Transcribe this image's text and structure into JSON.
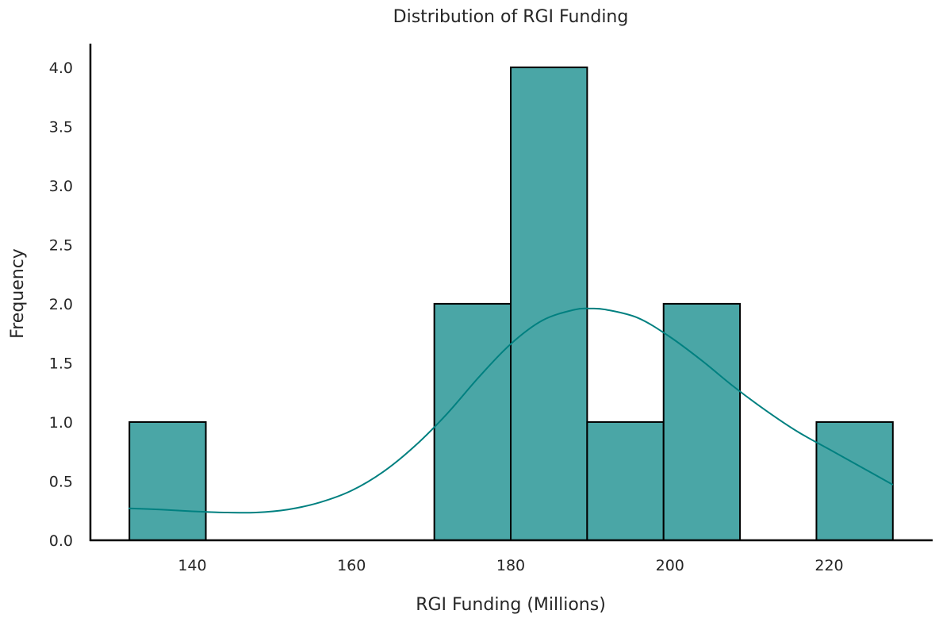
{
  "chart_data": {
    "type": "bar",
    "subtype": "histogram_with_kde",
    "title": "Distribution of RGI Funding",
    "xlabel": "RGI Funding (Millions)",
    "ylabel": "Frequency",
    "xlim": [
      127.2,
      233.0
    ],
    "ylim": [
      0,
      4.2
    ],
    "xticks": [
      140,
      160,
      180,
      200,
      220
    ],
    "yticks": [
      0.0,
      0.5,
      1.0,
      1.5,
      2.0,
      2.5,
      3.0,
      3.5,
      4.0
    ],
    "ytick_labels": [
      "0.0",
      "0.5",
      "1.0",
      "1.5",
      "2.0",
      "2.5",
      "3.0",
      "3.5",
      "4.0"
    ],
    "bins": [
      {
        "x0": 132.1,
        "x1": 141.7,
        "count": 1
      },
      {
        "x0": 141.7,
        "x1": 151.2,
        "count": 0
      },
      {
        "x0": 151.2,
        "x1": 160.8,
        "count": 0
      },
      {
        "x0": 160.8,
        "x1": 170.4,
        "count": 0
      },
      {
        "x0": 170.4,
        "x1": 180.0,
        "count": 2
      },
      {
        "x0": 180.0,
        "x1": 189.6,
        "count": 4
      },
      {
        "x0": 189.6,
        "x1": 199.2,
        "count": 1
      },
      {
        "x0": 199.2,
        "x1": 208.8,
        "count": 2
      },
      {
        "x0": 208.8,
        "x1": 218.4,
        "count": 0
      },
      {
        "x0": 218.4,
        "x1": 228.0,
        "count": 1
      }
    ],
    "kde": {
      "x": [
        132,
        136,
        140,
        144,
        148,
        152,
        156,
        160,
        164,
        168,
        172,
        176,
        180,
        184,
        188,
        190,
        192,
        196,
        200,
        204,
        208,
        212,
        216,
        220,
        224,
        228
      ],
      "y": [
        0.27,
        0.26,
        0.245,
        0.235,
        0.235,
        0.26,
        0.32,
        0.42,
        0.58,
        0.8,
        1.07,
        1.38,
        1.66,
        1.86,
        1.95,
        1.96,
        1.95,
        1.88,
        1.72,
        1.52,
        1.3,
        1.1,
        0.92,
        0.77,
        0.62,
        0.47
      ]
    },
    "colors": {
      "bar_fill": "#4aa6a6",
      "bar_edge": "#000000",
      "kde_line": "#008080",
      "axis": "#000000"
    },
    "grid": false
  }
}
